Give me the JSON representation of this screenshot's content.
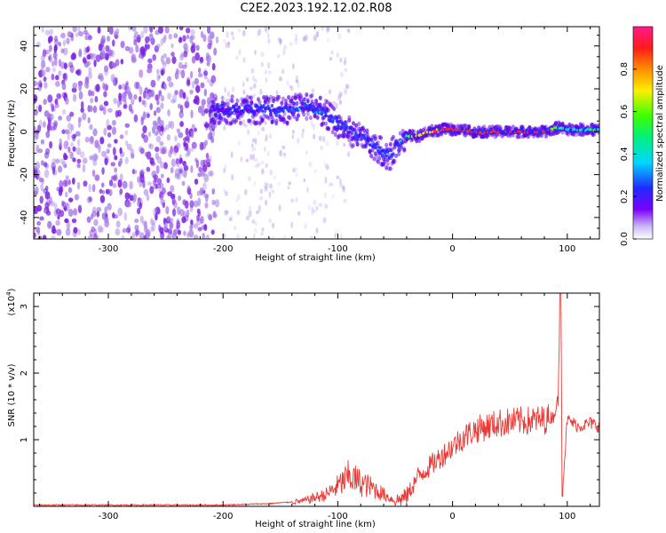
{
  "title": "C2E2.2023.192.12.02.R08",
  "colors": {
    "snr_line": "#e83a36",
    "scatter_low": "#a47fe6",
    "scatter_mid": "#7b1fe0",
    "ridge_core": "#ff2a2a",
    "ridge_mid": "#00e6e6"
  },
  "chart_data": [
    {
      "type": "heatmap",
      "title": "",
      "xlabel": "Height of straight line (km)",
      "ylabel": "Frequency (Hz)",
      "xlim": [
        -365,
        128
      ],
      "ylim": [
        -50,
        49
      ],
      "x_ticks": [
        -300,
        -200,
        -100,
        0,
        100
      ],
      "y_ticks": [
        -40,
        -20,
        0,
        20,
        40
      ],
      "ridge": {
        "description_free": true,
        "x": [
          -205,
          -180,
          -150,
          -125,
          -110,
          -95,
          -80,
          -65,
          -55,
          -48,
          -40,
          -30,
          -20,
          -10,
          0,
          20,
          50,
          80,
          92,
          100,
          128
        ],
        "freq": [
          10,
          10,
          10,
          12,
          8,
          2,
          -3,
          -8,
          -12,
          -5,
          -2,
          -2,
          0,
          1,
          1,
          0,
          0,
          0,
          2,
          1,
          1
        ],
        "amplitude": [
          0.25,
          0.3,
          0.35,
          0.4,
          0.35,
          0.3,
          0.3,
          0.35,
          0.4,
          0.45,
          0.6,
          0.75,
          0.85,
          0.9,
          0.95,
          1.0,
          1.0,
          0.95,
          0.6,
          0.5,
          0.5
        ]
      },
      "colorbar": {
        "label": "Normalized spectral amplitude",
        "range": [
          0,
          1
        ],
        "ticks": [
          "0.0",
          "0.2",
          "0.4",
          "0.6",
          "0.8"
        ],
        "tick_values": [
          0.0,
          0.2,
          0.4,
          0.6,
          0.8
        ]
      }
    },
    {
      "type": "line",
      "title": "",
      "xlabel": "Height of straight line (km)",
      "ylabel": "SNR (10 * v/v)",
      "y_multiplier_label": "(x10",
      "y_multiplier_exp": "4",
      "y_multiplier_close": ")",
      "xlim": [
        -365,
        128
      ],
      "ylim": [
        0,
        3.2
      ],
      "x_ticks": [
        -300,
        -200,
        -100,
        0,
        100
      ],
      "y_ticks": [
        1,
        2,
        3
      ],
      "series": [
        {
          "x": [
            -365,
            -300,
            -200,
            -160,
            -130,
            -110,
            -100,
            -90,
            -80,
            -70,
            -60,
            -50,
            -40,
            -30,
            -20,
            -10,
            0,
            10,
            20,
            40,
            60,
            80,
            88,
            92,
            94,
            96,
            100,
            110,
            120,
            128
          ],
          "y": [
            0.02,
            0.02,
            0.02,
            0.04,
            0.08,
            0.18,
            0.3,
            0.45,
            0.35,
            0.28,
            0.18,
            0.08,
            0.15,
            0.45,
            0.6,
            0.75,
            0.9,
            1.05,
            1.15,
            1.25,
            1.28,
            1.3,
            1.35,
            1.6,
            3.1,
            0.3,
            1.3,
            1.2,
            1.25,
            1.2
          ]
        }
      ]
    }
  ]
}
